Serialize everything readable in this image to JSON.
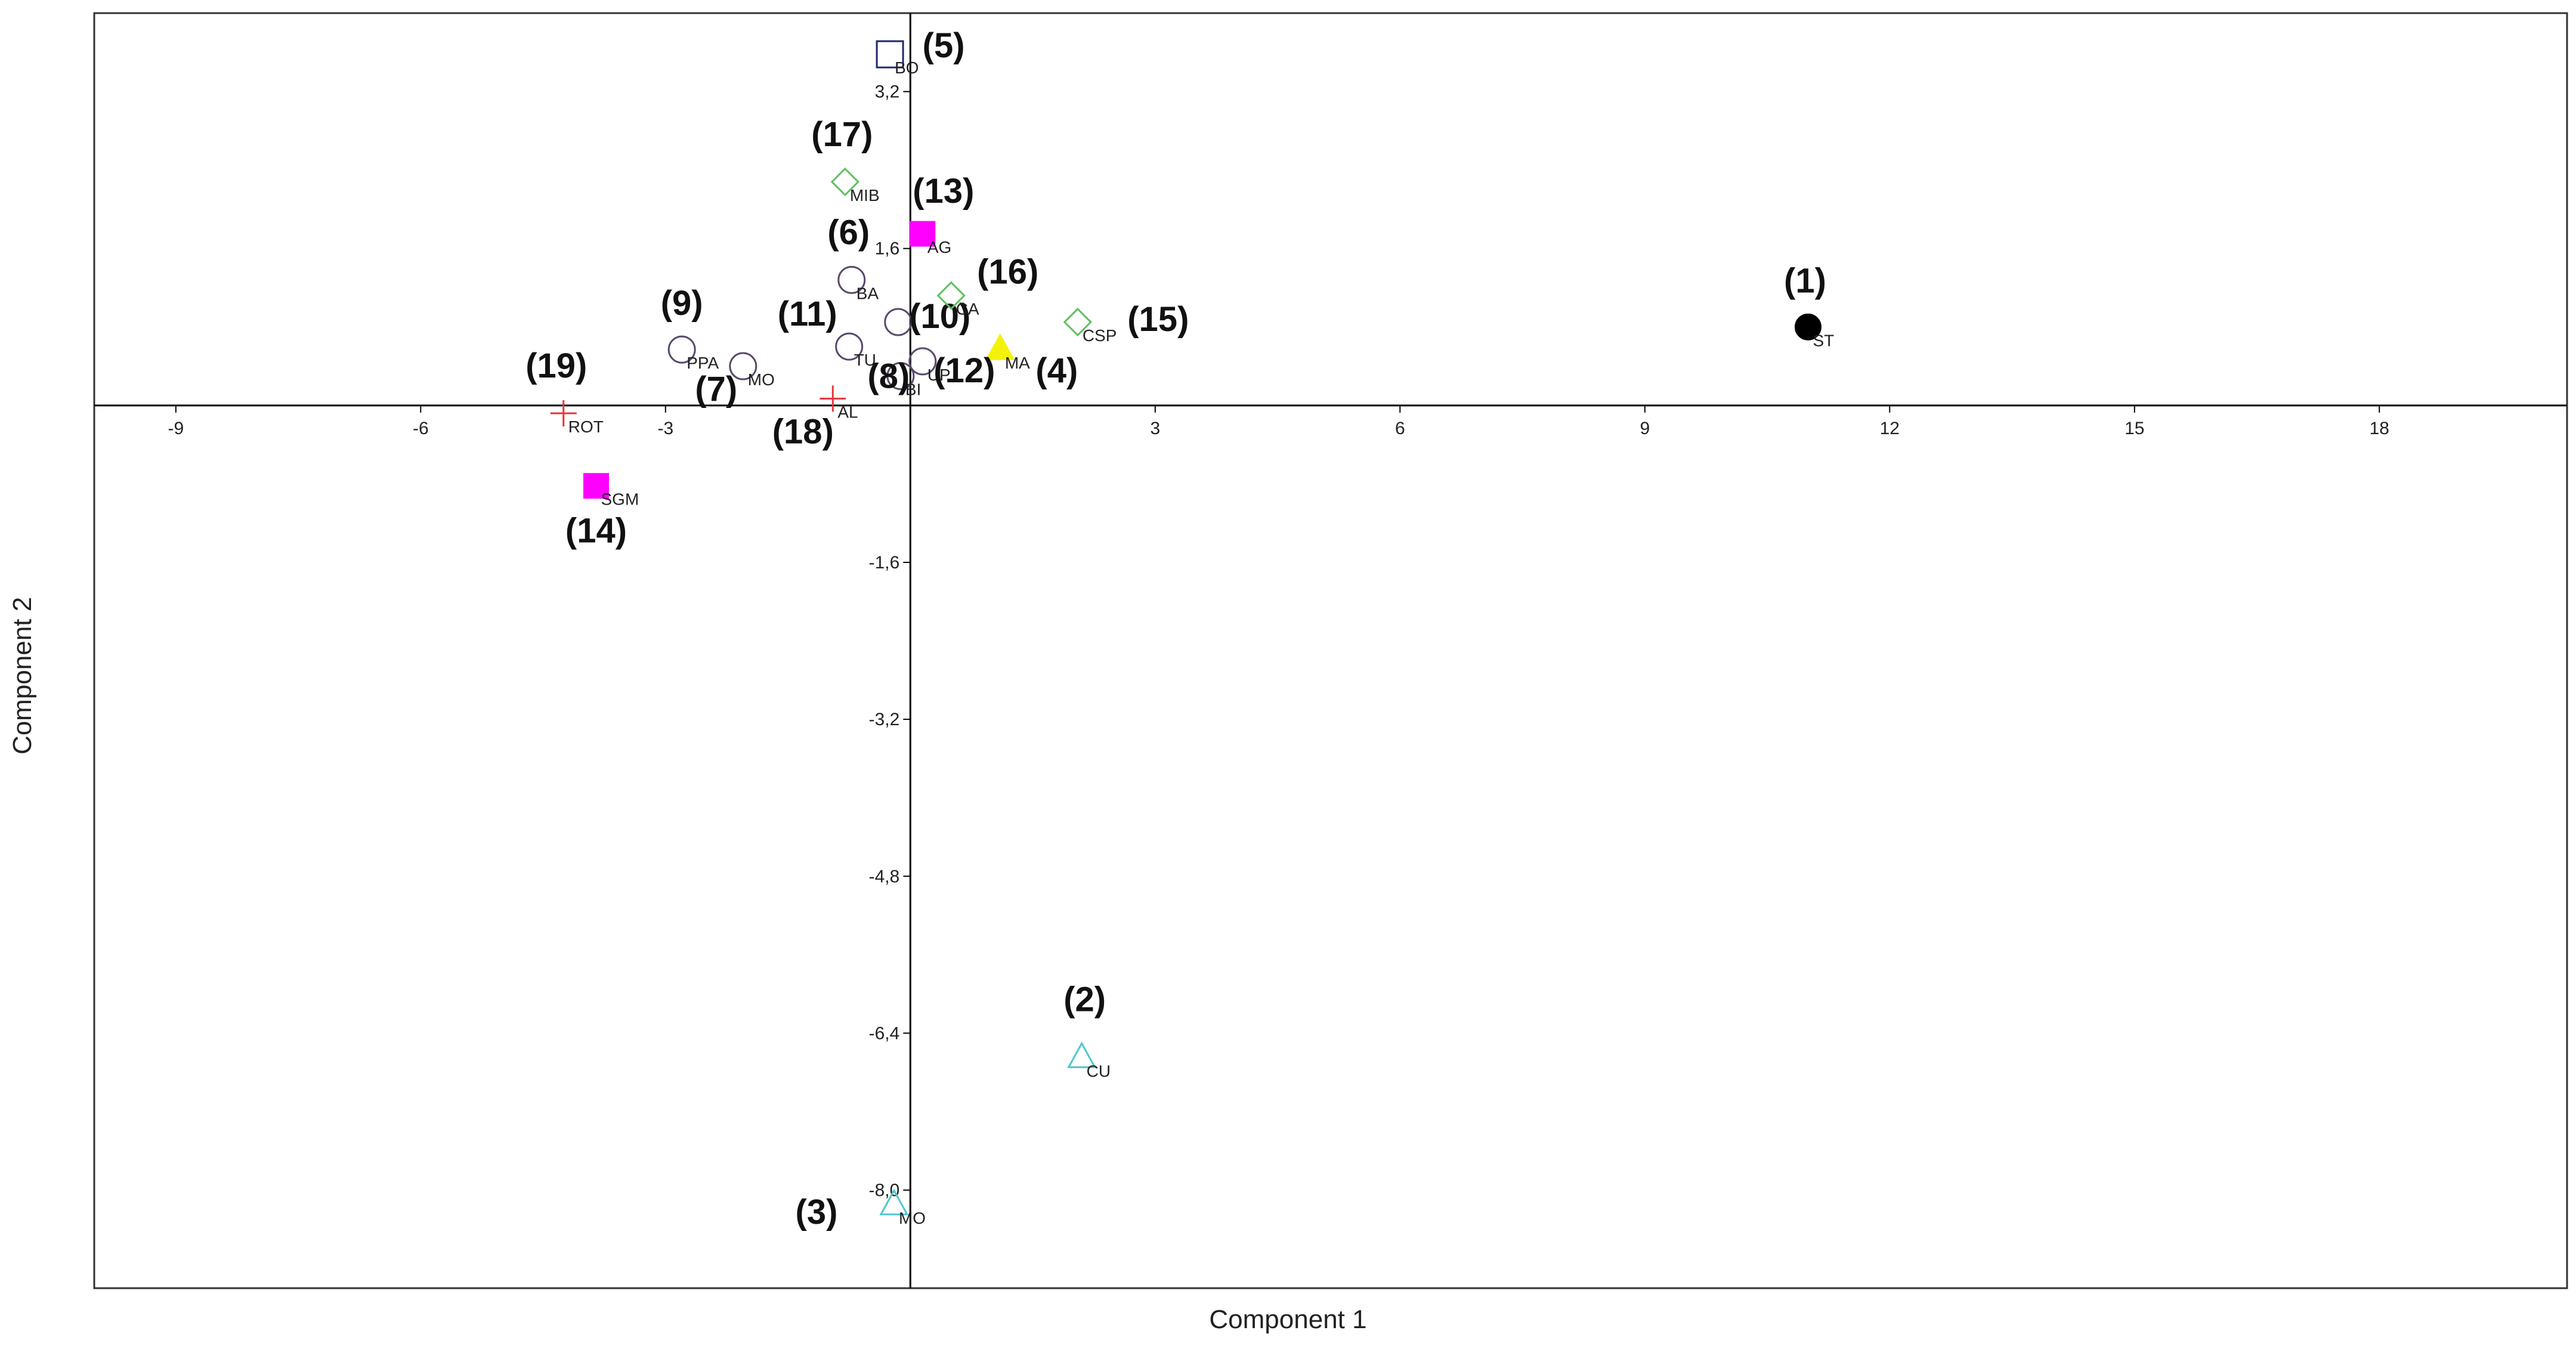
{
  "chart_data": {
    "type": "scatter",
    "title": "",
    "xlabel": "Component 1",
    "ylabel": "Component 2",
    "xlim": [
      -10,
      20.3
    ],
    "ylim": [
      -9,
      4
    ],
    "xticks": [
      -9,
      -6,
      -3,
      0,
      3,
      6,
      9,
      12,
      15,
      18
    ],
    "xtick_labels": [
      "-9",
      "-6",
      "-3",
      "0",
      "3",
      "6",
      "9",
      "12",
      "15",
      "18"
    ],
    "yticks": [
      -8.0,
      -6.4,
      -4.8,
      -3.2,
      -1.6,
      1.6,
      3.2
    ],
    "ytick_labels": [
      "-8,0",
      "-6,4",
      "-4,8",
      "-3,2",
      "-1,6",
      "1,6",
      "3,2"
    ],
    "grid": false,
    "points": [
      {
        "label": "ST",
        "number": "(1)",
        "x": 11.0,
        "y": 0.8,
        "marker": "circle-filled",
        "color": "#000000"
      },
      {
        "label": "CU",
        "number": "(2)",
        "x": 2.1,
        "y": -6.65,
        "marker": "triangle",
        "color": "#4fc7d0"
      },
      {
        "label": "MO",
        "number": "(3)",
        "x": -0.2,
        "y": -8.15,
        "marker": "triangle",
        "color": "#4fc7d0"
      },
      {
        "label": "MA",
        "number": "(4)",
        "x": 1.1,
        "y": 0.57,
        "marker": "triangle-filled",
        "color": "#f2f20a"
      },
      {
        "label": "BO",
        "number": "(5)",
        "x": -0.25,
        "y": 3.58,
        "marker": "square",
        "color": "#1f2a6e"
      },
      {
        "label": "BA",
        "number": "(6)",
        "x": -0.72,
        "y": 1.28,
        "marker": "circle",
        "color": "#5a4a6a"
      },
      {
        "label": "MO",
        "number": "(7)",
        "x": -2.05,
        "y": 0.4,
        "marker": "circle",
        "color": "#5a4a6a"
      },
      {
        "label": "BI",
        "number": "(8)",
        "x": -0.12,
        "y": 0.3,
        "marker": "circle",
        "color": "#5a4a6a"
      },
      {
        "label": "PPA",
        "number": "(9)",
        "x": -2.8,
        "y": 0.57,
        "marker": "circle",
        "color": "#5a4a6a"
      },
      {
        "label": "",
        "number": "(10)",
        "x": -0.15,
        "y": 0.85,
        "marker": "circle",
        "color": "#5a4a6a"
      },
      {
        "label": "TU",
        "number": "(11)",
        "x": -0.75,
        "y": 0.6,
        "marker": "circle",
        "color": "#5a4a6a"
      },
      {
        "label": "UP",
        "number": "(12)",
        "x": 0.15,
        "y": 0.45,
        "marker": "circle",
        "color": "#5a4a6a"
      },
      {
        "label": "AG",
        "number": "(13)",
        "x": 0.15,
        "y": 1.75,
        "marker": "square-filled",
        "color": "#ff00ff"
      },
      {
        "label": "SGM",
        "number": "(14)",
        "x": -3.85,
        "y": -0.82,
        "marker": "square-filled",
        "color": "#ff00ff"
      },
      {
        "label": "CSP",
        "number": "(15)",
        "x": 2.05,
        "y": 0.85,
        "marker": "diamond",
        "color": "#5fc05f"
      },
      {
        "label": "CA",
        "number": "(16)",
        "x": 0.5,
        "y": 1.12,
        "marker": "diamond",
        "color": "#5fc05f"
      },
      {
        "label": "MIB",
        "number": "(17)",
        "x": -0.8,
        "y": 2.28,
        "marker": "diamond",
        "color": "#5fc05f"
      },
      {
        "label": "AL",
        "number": "(18)",
        "x": -0.95,
        "y": 0.07,
        "marker": "plus",
        "color": "#e8343a"
      },
      {
        "label": "ROT",
        "number": "(19)",
        "x": -4.25,
        "y": -0.08,
        "marker": "plus",
        "color": "#e8343a"
      }
    ]
  }
}
